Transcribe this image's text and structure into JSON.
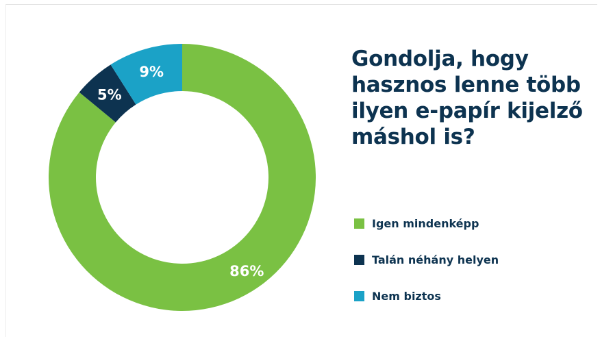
{
  "chart_data": {
    "type": "pie",
    "donut": true,
    "title": "Gondolja, hogy hasznos lenne több ilyen e-papír kijelző máshol is?",
    "slices": [
      {
        "label": "Igen mindenképp",
        "value": 86,
        "display": "86%",
        "color": "#7ac143"
      },
      {
        "label": "Talán néhány helyen",
        "value": 5,
        "display": "5%",
        "color": "#0d3350"
      },
      {
        "label": "Nem biztos",
        "value": 9,
        "display": "9%",
        "color": "#1ba2c7"
      }
    ],
    "legend_position": "right"
  }
}
